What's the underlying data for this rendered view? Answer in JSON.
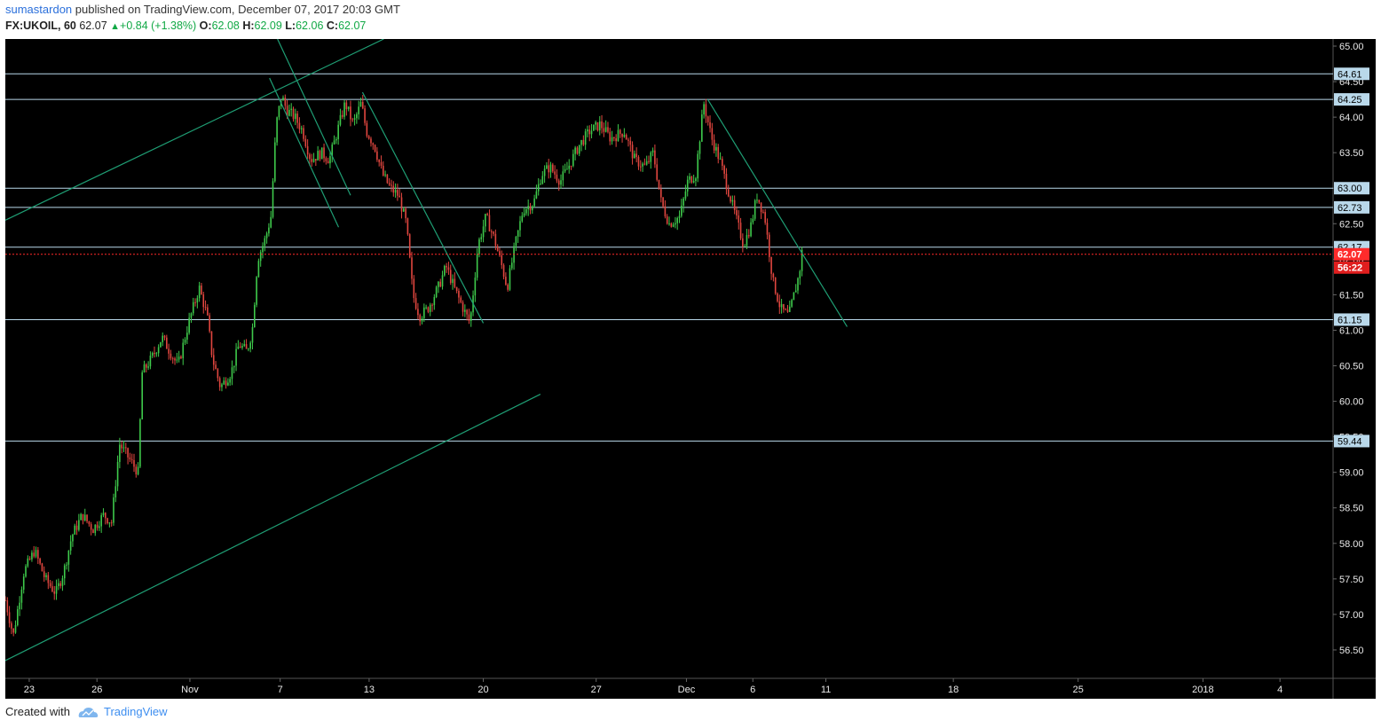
{
  "header": {
    "author": "sumastardon",
    "published_text": "published on TradingView.com, December 07, 2017 20:03 GMT",
    "symbol": "FX:UKOIL, 60",
    "last": "62.07",
    "change": "+0.84 (+1.38%)",
    "open_label": "O:",
    "open": "62.08",
    "high_label": "H:",
    "high": "62.09",
    "low_label": "L:",
    "low": "62.06",
    "close_label": "C:",
    "close": "62.07"
  },
  "footer": {
    "created_with": "Created with",
    "brand": "TradingView",
    "logo_icon": "tradingview-cloud-icon"
  },
  "colors": {
    "background": "#000000",
    "level_line": "#b9d8ea",
    "trend_line": "#1f9e74",
    "candle_up": "#3ec94b",
    "candle_down": "#e0463f",
    "current_price": "#ff2b2b",
    "axis_label_bg": "#b9d8ea"
  },
  "chart_data": {
    "type": "candlestick",
    "symbol": "FX:UKOIL",
    "timeframe": "60",
    "ylim": [
      56.1,
      65.1
    ],
    "y_ticks": [
      "56.50",
      "57.00",
      "57.50",
      "58.00",
      "58.50",
      "59.00",
      "59.50",
      "60.00",
      "60.50",
      "61.00",
      "61.50",
      "62.00",
      "62.50",
      "63.00",
      "63.50",
      "64.00",
      "64.50",
      "65.00"
    ],
    "x_ticks": [
      {
        "label": "23",
        "pos": 0.018
      },
      {
        "label": "26",
        "pos": 0.069
      },
      {
        "label": "Nov",
        "pos": 0.139
      },
      {
        "label": "7",
        "pos": 0.207
      },
      {
        "label": "13",
        "pos": 0.274
      },
      {
        "label": "20",
        "pos": 0.36
      },
      {
        "label": "27",
        "pos": 0.445
      },
      {
        "label": "Dec",
        "pos": 0.513
      },
      {
        "label": "6",
        "pos": 0.563
      },
      {
        "label": "11",
        "pos": 0.618
      },
      {
        "label": "18",
        "pos": 0.714
      },
      {
        "label": "25",
        "pos": 0.808
      },
      {
        "label": "2018",
        "pos": 0.902
      },
      {
        "label": "4",
        "pos": 0.96
      }
    ],
    "horizontal_levels": [
      "64.61",
      "64.25",
      "63.00",
      "62.73",
      "62.17",
      "61.15",
      "59.44"
    ],
    "current_price": "62.07",
    "countdown": "56:22",
    "price_path": [
      [
        0.0,
        57.2
      ],
      [
        0.006,
        56.7
      ],
      [
        0.014,
        57.6
      ],
      [
        0.022,
        57.9
      ],
      [
        0.03,
        57.5
      ],
      [
        0.038,
        57.3
      ],
      [
        0.044,
        57.6
      ],
      [
        0.05,
        58.1
      ],
      [
        0.058,
        58.4
      ],
      [
        0.066,
        58.2
      ],
      [
        0.074,
        58.4
      ],
      [
        0.08,
        58.3
      ],
      [
        0.086,
        59.4
      ],
      [
        0.093,
        59.2
      ],
      [
        0.1,
        59.0
      ],
      [
        0.103,
        60.4
      ],
      [
        0.11,
        60.6
      ],
      [
        0.118,
        60.9
      ],
      [
        0.124,
        60.7
      ],
      [
        0.13,
        60.5
      ],
      [
        0.138,
        61.1
      ],
      [
        0.146,
        61.6
      ],
      [
        0.152,
        61.2
      ],
      [
        0.156,
        60.6
      ],
      [
        0.162,
        60.2
      ],
      [
        0.17,
        60.4
      ],
      [
        0.176,
        60.8
      ],
      [
        0.182,
        60.7
      ],
      [
        0.186,
        61.0
      ],
      [
        0.19,
        62.0
      ],
      [
        0.196,
        62.3
      ],
      [
        0.2,
        62.6
      ],
      [
        0.204,
        63.9
      ],
      [
        0.208,
        64.3
      ],
      [
        0.212,
        64.1
      ],
      [
        0.218,
        64.0
      ],
      [
        0.224,
        63.8
      ],
      [
        0.23,
        63.4
      ],
      [
        0.238,
        63.5
      ],
      [
        0.244,
        63.4
      ],
      [
        0.25,
        63.8
      ],
      [
        0.256,
        64.2
      ],
      [
        0.262,
        63.9
      ],
      [
        0.268,
        64.2
      ],
      [
        0.272,
        63.8
      ],
      [
        0.278,
        63.6
      ],
      [
        0.284,
        63.2
      ],
      [
        0.29,
        63.0
      ],
      [
        0.296,
        62.9
      ],
      [
        0.302,
        62.5
      ],
      [
        0.307,
        61.5
      ],
      [
        0.312,
        61.2
      ],
      [
        0.318,
        61.3
      ],
      [
        0.326,
        61.6
      ],
      [
        0.332,
        61.9
      ],
      [
        0.338,
        61.6
      ],
      [
        0.345,
        61.3
      ],
      [
        0.35,
        61.1
      ],
      [
        0.356,
        62.2
      ],
      [
        0.362,
        62.6
      ],
      [
        0.368,
        62.3
      ],
      [
        0.374,
        61.9
      ],
      [
        0.378,
        61.6
      ],
      [
        0.384,
        62.2
      ],
      [
        0.39,
        62.7
      ],
      [
        0.398,
        62.8
      ],
      [
        0.404,
        63.2
      ],
      [
        0.41,
        63.3
      ],
      [
        0.418,
        63.1
      ],
      [
        0.424,
        63.3
      ],
      [
        0.432,
        63.6
      ],
      [
        0.44,
        63.8
      ],
      [
        0.448,
        63.9
      ],
      [
        0.456,
        63.7
      ],
      [
        0.466,
        63.8
      ],
      [
        0.474,
        63.4
      ],
      [
        0.482,
        63.3
      ],
      [
        0.488,
        63.5
      ],
      [
        0.494,
        62.8
      ],
      [
        0.5,
        62.5
      ],
      [
        0.508,
        62.6
      ],
      [
        0.514,
        63.1
      ],
      [
        0.52,
        63.2
      ],
      [
        0.526,
        64.2
      ],
      [
        0.532,
        63.7
      ],
      [
        0.538,
        63.4
      ],
      [
        0.544,
        63.0
      ],
      [
        0.55,
        62.6
      ],
      [
        0.556,
        62.2
      ],
      [
        0.562,
        62.5
      ],
      [
        0.566,
        62.9
      ],
      [
        0.572,
        62.6
      ],
      [
        0.578,
        61.7
      ],
      [
        0.584,
        61.3
      ],
      [
        0.59,
        61.2
      ],
      [
        0.594,
        61.5
      ],
      [
        0.598,
        61.8
      ],
      [
        0.6,
        62.1
      ]
    ],
    "trend_lines": [
      [
        [
          0.0,
          62.55
        ],
        [
          0.285,
          65.1
        ]
      ],
      [
        [
          0.0,
          56.35
        ],
        [
          0.403,
          60.1
        ]
      ],
      [
        [
          0.199,
          64.55
        ],
        [
          0.251,
          62.45
        ]
      ],
      [
        [
          0.205,
          65.1
        ],
        [
          0.26,
          62.9
        ]
      ],
      [
        [
          0.269,
          64.35
        ],
        [
          0.36,
          61.1
        ]
      ],
      [
        [
          0.529,
          64.25
        ],
        [
          0.634,
          61.05
        ]
      ]
    ]
  }
}
